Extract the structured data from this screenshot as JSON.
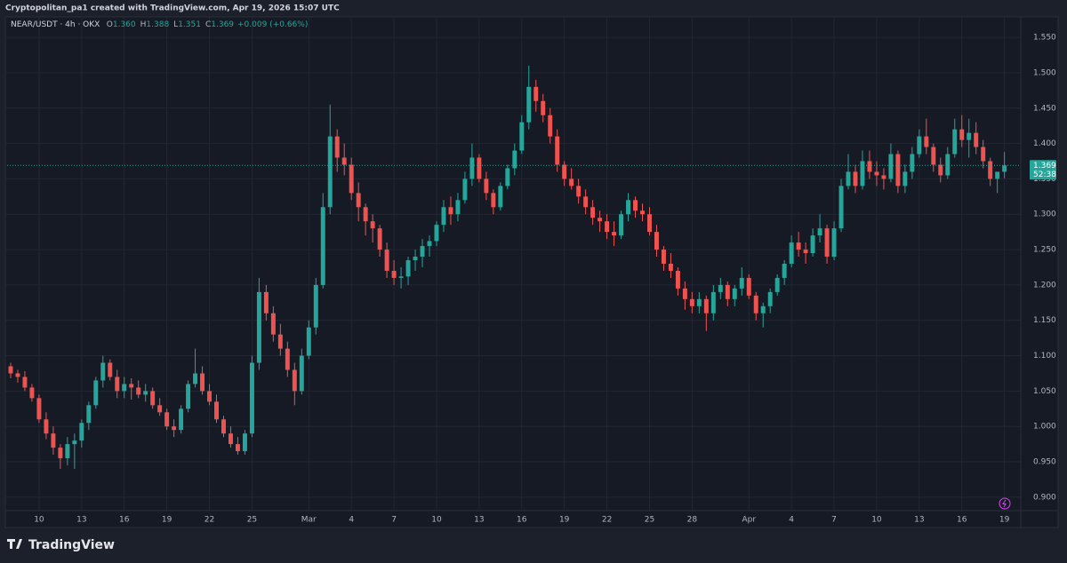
{
  "header": {
    "caption": "Cryptopolitan_pa1 created with TradingView.com, Apr 19, 2026 15:07 UTC"
  },
  "footer": {
    "brand": "TradingView"
  },
  "chart_data": {
    "type": "candlestick",
    "symbol": "NEAR/USDT · 4h · OKX",
    "ohlc_legend": [
      {
        "label": "O",
        "value": "1.360"
      },
      {
        "label": "H",
        "value": "1.388"
      },
      {
        "label": "L",
        "value": "1.351"
      },
      {
        "label": "C",
        "value": "1.369"
      }
    ],
    "change": "+0.009 (+0.66%)",
    "up_color": "#26a69a",
    "down_color": "#ef5350",
    "grid": true,
    "last_price": {
      "value": 1.369,
      "countdown": "52:38"
    },
    "xlim": [
      -0.5,
      142.3
    ],
    "xticks": [
      {
        "value": 4,
        "label": "10"
      },
      {
        "value": 10,
        "label": "13"
      },
      {
        "value": 16,
        "label": "16"
      },
      {
        "value": 22,
        "label": "19"
      },
      {
        "value": 28,
        "label": "22"
      },
      {
        "value": 34,
        "label": "25"
      },
      {
        "value": 42,
        "label": "Mar"
      },
      {
        "value": 48,
        "label": "4"
      },
      {
        "value": 54,
        "label": "7"
      },
      {
        "value": 60,
        "label": "10"
      },
      {
        "value": 66,
        "label": "13"
      },
      {
        "value": 72,
        "label": "16"
      },
      {
        "value": 78,
        "label": "19"
      },
      {
        "value": 84,
        "label": "22"
      },
      {
        "value": 90,
        "label": "25"
      },
      {
        "value": 96,
        "label": "28"
      },
      {
        "value": 104,
        "label": "Apr"
      },
      {
        "value": 110,
        "label": "4"
      },
      {
        "value": 116,
        "label": "7"
      },
      {
        "value": 122,
        "label": "10"
      },
      {
        "value": 128,
        "label": "13"
      },
      {
        "value": 134,
        "label": "16"
      },
      {
        "value": 140,
        "label": "19"
      }
    ],
    "ylim": [
      0.881,
      1.579
    ],
    "yticks": [
      {
        "value": 0.9,
        "label": "0.900"
      },
      {
        "value": 0.95,
        "label": "0.950"
      },
      {
        "value": 1.0,
        "label": "1.000"
      },
      {
        "value": 1.05,
        "label": "1.050"
      },
      {
        "value": 1.1,
        "label": "1.100"
      },
      {
        "value": 1.15,
        "label": "1.150"
      },
      {
        "value": 1.2,
        "label": "1.200"
      },
      {
        "value": 1.25,
        "label": "1.250"
      },
      {
        "value": 1.3,
        "label": "1.300"
      },
      {
        "value": 1.35,
        "label": "1.350"
      },
      {
        "value": 1.4,
        "label": "1.400"
      },
      {
        "value": 1.45,
        "label": "1.450"
      },
      {
        "value": 1.5,
        "label": "1.500"
      },
      {
        "value": 1.55,
        "label": "1.550"
      }
    ],
    "candles": [
      [
        1.085,
        1.09,
        1.068,
        1.075
      ],
      [
        1.075,
        1.08,
        1.062,
        1.07
      ],
      [
        1.07,
        1.078,
        1.05,
        1.055
      ],
      [
        1.055,
        1.06,
        1.035,
        1.04
      ],
      [
        1.04,
        1.045,
        1.005,
        1.01
      ],
      [
        1.01,
        1.02,
        0.982,
        0.99
      ],
      [
        0.99,
        1.0,
        0.96,
        0.97
      ],
      [
        0.97,
        0.975,
        0.94,
        0.955
      ],
      [
        0.955,
        0.985,
        0.945,
        0.975
      ],
      [
        0.975,
        0.99,
        0.94,
        0.98
      ],
      [
        0.98,
        1.01,
        0.97,
        1.005
      ],
      [
        1.005,
        1.035,
        0.995,
        1.03
      ],
      [
        1.03,
        1.07,
        1.025,
        1.065
      ],
      [
        1.065,
        1.1,
        1.055,
        1.09
      ],
      [
        1.09,
        1.095,
        1.065,
        1.07
      ],
      [
        1.07,
        1.08,
        1.04,
        1.05
      ],
      [
        1.05,
        1.07,
        1.04,
        1.06
      ],
      [
        1.06,
        1.068,
        1.038,
        1.055
      ],
      [
        1.055,
        1.065,
        1.04,
        1.045
      ],
      [
        1.045,
        1.06,
        1.035,
        1.05
      ],
      [
        1.05,
        1.055,
        1.025,
        1.03
      ],
      [
        1.03,
        1.04,
        1.015,
        1.02
      ],
      [
        1.02,
        1.025,
        0.995,
        1.0
      ],
      [
        1.0,
        1.01,
        0.985,
        0.995
      ],
      [
        0.995,
        1.03,
        0.99,
        1.025
      ],
      [
        1.025,
        1.065,
        1.02,
        1.06
      ],
      [
        1.06,
        1.11,
        1.055,
        1.075
      ],
      [
        1.075,
        1.085,
        1.045,
        1.05
      ],
      [
        1.05,
        1.06,
        1.03,
        1.035
      ],
      [
        1.035,
        1.045,
        1.005,
        1.01
      ],
      [
        1.01,
        1.015,
        0.985,
        0.99
      ],
      [
        0.99,
        1.0,
        0.97,
        0.975
      ],
      [
        0.975,
        0.985,
        0.96,
        0.965
      ],
      [
        0.965,
        0.995,
        0.96,
        0.99
      ],
      [
        0.99,
        1.1,
        0.985,
        1.09
      ],
      [
        1.09,
        1.21,
        1.08,
        1.19
      ],
      [
        1.19,
        1.2,
        1.15,
        1.16
      ],
      [
        1.16,
        1.17,
        1.12,
        1.13
      ],
      [
        1.13,
        1.145,
        1.1,
        1.11
      ],
      [
        1.11,
        1.12,
        1.07,
        1.08
      ],
      [
        1.08,
        1.09,
        1.03,
        1.05
      ],
      [
        1.05,
        1.11,
        1.045,
        1.1
      ],
      [
        1.1,
        1.15,
        1.095,
        1.14
      ],
      [
        1.14,
        1.21,
        1.13,
        1.2
      ],
      [
        1.2,
        1.33,
        1.195,
        1.31
      ],
      [
        1.31,
        1.455,
        1.3,
        1.41
      ],
      [
        1.41,
        1.42,
        1.36,
        1.38
      ],
      [
        1.38,
        1.4,
        1.355,
        1.37
      ],
      [
        1.37,
        1.38,
        1.32,
        1.33
      ],
      [
        1.33,
        1.345,
        1.29,
        1.31
      ],
      [
        1.31,
        1.315,
        1.27,
        1.29
      ],
      [
        1.29,
        1.3,
        1.26,
        1.28
      ],
      [
        1.28,
        1.285,
        1.24,
        1.25
      ],
      [
        1.25,
        1.26,
        1.21,
        1.22
      ],
      [
        1.22,
        1.235,
        1.2,
        1.21
      ],
      [
        1.21,
        1.225,
        1.195,
        1.212
      ],
      [
        1.212,
        1.24,
        1.2,
        1.235
      ],
      [
        1.235,
        1.25,
        1.22,
        1.24
      ],
      [
        1.24,
        1.265,
        1.225,
        1.255
      ],
      [
        1.255,
        1.27,
        1.24,
        1.262
      ],
      [
        1.262,
        1.29,
        1.255,
        1.285
      ],
      [
        1.285,
        1.32,
        1.275,
        1.31
      ],
      [
        1.31,
        1.325,
        1.285,
        1.3
      ],
      [
        1.3,
        1.33,
        1.29,
        1.32
      ],
      [
        1.32,
        1.36,
        1.315,
        1.35
      ],
      [
        1.35,
        1.4,
        1.34,
        1.38
      ],
      [
        1.38,
        1.385,
        1.345,
        1.35
      ],
      [
        1.35,
        1.36,
        1.32,
        1.33
      ],
      [
        1.33,
        1.335,
        1.3,
        1.31
      ],
      [
        1.31,
        1.345,
        1.305,
        1.34
      ],
      [
        1.34,
        1.37,
        1.335,
        1.365
      ],
      [
        1.365,
        1.4,
        1.355,
        1.39
      ],
      [
        1.39,
        1.44,
        1.385,
        1.43
      ],
      [
        1.43,
        1.51,
        1.42,
        1.48
      ],
      [
        1.48,
        1.49,
        1.445,
        1.46
      ],
      [
        1.46,
        1.47,
        1.43,
        1.44
      ],
      [
        1.44,
        1.45,
        1.4,
        1.41
      ],
      [
        1.41,
        1.42,
        1.36,
        1.37
      ],
      [
        1.37,
        1.375,
        1.34,
        1.35
      ],
      [
        1.35,
        1.365,
        1.335,
        1.34
      ],
      [
        1.34,
        1.35,
        1.315,
        1.325
      ],
      [
        1.325,
        1.335,
        1.3,
        1.31
      ],
      [
        1.31,
        1.32,
        1.285,
        1.295
      ],
      [
        1.295,
        1.305,
        1.275,
        1.29
      ],
      [
        1.29,
        1.3,
        1.265,
        1.275
      ],
      [
        1.275,
        1.29,
        1.255,
        1.27
      ],
      [
        1.27,
        1.305,
        1.265,
        1.3
      ],
      [
        1.3,
        1.33,
        1.29,
        1.32
      ],
      [
        1.32,
        1.325,
        1.295,
        1.305
      ],
      [
        1.305,
        1.315,
        1.29,
        1.3
      ],
      [
        1.3,
        1.31,
        1.27,
        1.275
      ],
      [
        1.275,
        1.285,
        1.24,
        1.25
      ],
      [
        1.25,
        1.255,
        1.22,
        1.23
      ],
      [
        1.23,
        1.245,
        1.21,
        1.22
      ],
      [
        1.22,
        1.225,
        1.185,
        1.195
      ],
      [
        1.195,
        1.205,
        1.165,
        1.18
      ],
      [
        1.18,
        1.19,
        1.16,
        1.17
      ],
      [
        1.17,
        1.19,
        1.16,
        1.18
      ],
      [
        1.18,
        1.185,
        1.135,
        1.16
      ],
      [
        1.16,
        1.2,
        1.15,
        1.19
      ],
      [
        1.19,
        1.21,
        1.18,
        1.2
      ],
      [
        1.2,
        1.205,
        1.17,
        1.18
      ],
      [
        1.18,
        1.2,
        1.17,
        1.195
      ],
      [
        1.195,
        1.225,
        1.185,
        1.21
      ],
      [
        1.21,
        1.215,
        1.18,
        1.185
      ],
      [
        1.185,
        1.19,
        1.15,
        1.16
      ],
      [
        1.16,
        1.175,
        1.14,
        1.17
      ],
      [
        1.17,
        1.195,
        1.16,
        1.19
      ],
      [
        1.19,
        1.215,
        1.185,
        1.21
      ],
      [
        1.21,
        1.235,
        1.2,
        1.23
      ],
      [
        1.23,
        1.27,
        1.225,
        1.26
      ],
      [
        1.26,
        1.275,
        1.24,
        1.25
      ],
      [
        1.25,
        1.26,
        1.23,
        1.245
      ],
      [
        1.245,
        1.28,
        1.24,
        1.27
      ],
      [
        1.27,
        1.3,
        1.26,
        1.28
      ],
      [
        1.28,
        1.285,
        1.23,
        1.24
      ],
      [
        1.24,
        1.29,
        1.235,
        1.28
      ],
      [
        1.28,
        1.35,
        1.275,
        1.34
      ],
      [
        1.34,
        1.385,
        1.335,
        1.36
      ],
      [
        1.36,
        1.37,
        1.33,
        1.34
      ],
      [
        1.34,
        1.39,
        1.335,
        1.375
      ],
      [
        1.375,
        1.39,
        1.35,
        1.36
      ],
      [
        1.36,
        1.375,
        1.34,
        1.355
      ],
      [
        1.355,
        1.365,
        1.335,
        1.35
      ],
      [
        1.35,
        1.4,
        1.345,
        1.385
      ],
      [
        1.385,
        1.39,
        1.33,
        1.34
      ],
      [
        1.34,
        1.37,
        1.33,
        1.36
      ],
      [
        1.36,
        1.395,
        1.35,
        1.385
      ],
      [
        1.385,
        1.42,
        1.38,
        1.41
      ],
      [
        1.41,
        1.435,
        1.385,
        1.395
      ],
      [
        1.395,
        1.4,
        1.36,
        1.37
      ],
      [
        1.37,
        1.38,
        1.345,
        1.355
      ],
      [
        1.355,
        1.395,
        1.35,
        1.385
      ],
      [
        1.385,
        1.435,
        1.38,
        1.42
      ],
      [
        1.42,
        1.44,
        1.395,
        1.405
      ],
      [
        1.405,
        1.435,
        1.38,
        1.415
      ],
      [
        1.415,
        1.43,
        1.385,
        1.395
      ],
      [
        1.395,
        1.405,
        1.365,
        1.375
      ],
      [
        1.375,
        1.38,
        1.34,
        1.35
      ],
      [
        1.35,
        1.36,
        1.33,
        1.36
      ],
      [
        1.36,
        1.388,
        1.351,
        1.369
      ]
    ]
  }
}
